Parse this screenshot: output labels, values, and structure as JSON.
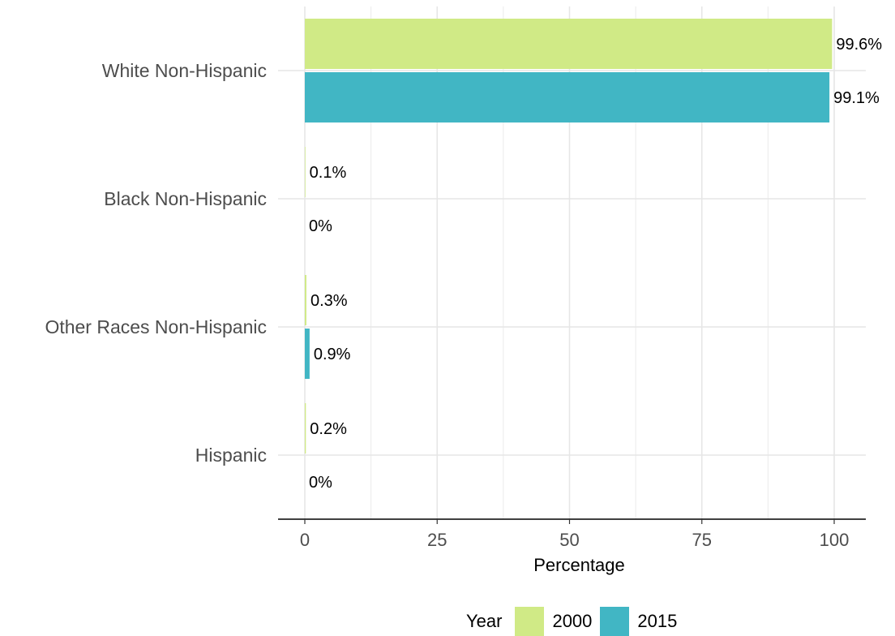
{
  "chart_data": {
    "type": "bar",
    "orientation": "horizontal",
    "categories": [
      "White Non-Hispanic",
      "Black Non-Hispanic",
      "Other Races Non-Hispanic",
      "Hispanic"
    ],
    "series": [
      {
        "name": "2000",
        "color": "#d0ea86",
        "values": [
          99.6,
          0.1,
          0.3,
          0.2
        ],
        "labels": [
          "99.6%",
          "0.1%",
          "0.3%",
          "0.2%"
        ]
      },
      {
        "name": "2015",
        "color": "#41b6c4",
        "values": [
          99.1,
          0,
          0.9,
          0
        ],
        "labels": [
          "99.1%",
          "0%",
          "0.9%",
          "0%"
        ]
      }
    ],
    "xlabel": "Percentage",
    "ylabel": "",
    "xlim": [
      -5,
      105
    ],
    "xticks": [
      0,
      25,
      50,
      75,
      100
    ],
    "xtick_labels": [
      "0",
      "25",
      "50",
      "75",
      "100"
    ],
    "grid": true,
    "legend": {
      "title": "Year",
      "position": "bottom"
    }
  }
}
